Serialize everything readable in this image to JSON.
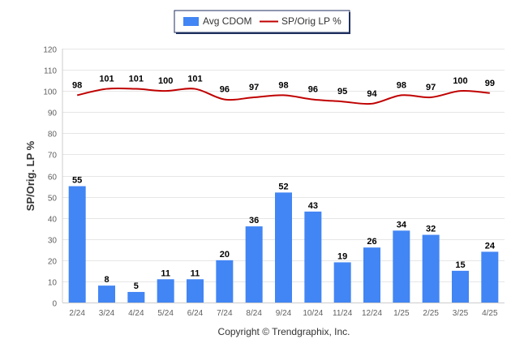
{
  "chart_data": {
    "type": "bar",
    "categories": [
      "2/24",
      "3/24",
      "4/24",
      "5/24",
      "6/24",
      "7/24",
      "8/24",
      "9/24",
      "10/24",
      "11/24",
      "12/24",
      "1/25",
      "2/25",
      "3/25",
      "4/25"
    ],
    "series": [
      {
        "name": "Avg CDOM",
        "type": "bar",
        "color": "#4285f4",
        "values": [
          55,
          8,
          5,
          11,
          11,
          20,
          36,
          52,
          43,
          19,
          26,
          34,
          32,
          15,
          24
        ]
      },
      {
        "name": "SP/Orig LP %",
        "type": "line",
        "color": "#c00000",
        "values": [
          98,
          101,
          101,
          100,
          101,
          96,
          97,
          98,
          96,
          95,
          94,
          98,
          97,
          100,
          99
        ]
      }
    ],
    "ylabel": "SP/Orig. LP %",
    "ylim": [
      0,
      120
    ],
    "yticks": [
      0,
      10,
      20,
      30,
      40,
      50,
      60,
      70,
      80,
      90,
      100,
      110,
      120
    ],
    "grid": true,
    "legend_position": "top-center"
  },
  "footer": {
    "copyright": "Copyright © Trendgraphix, Inc."
  }
}
